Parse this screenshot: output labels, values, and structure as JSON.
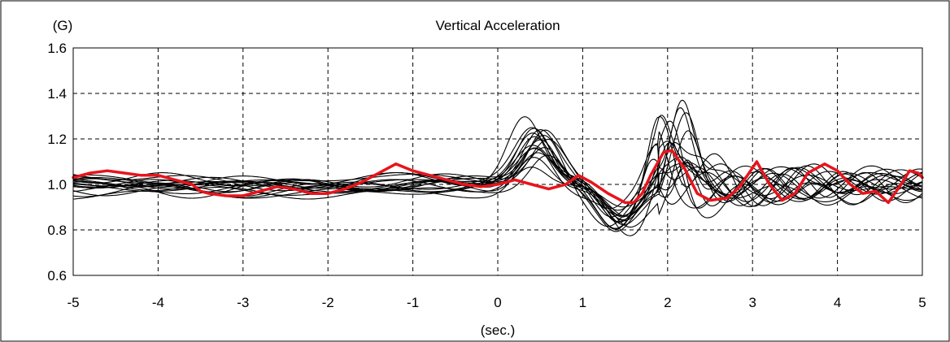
{
  "chart_data": {
    "type": "line",
    "title": "Vertical Acceleration",
    "y_unit_label": "(G)",
    "xlabel": "(sec.)",
    "xlim": [
      -5,
      5
    ],
    "ylim": [
      0.6,
      1.6
    ],
    "x_ticks": [
      -5,
      -4,
      -3,
      -2,
      -1,
      0,
      1,
      2,
      3,
      4,
      5
    ],
    "y_ticks": [
      0.6,
      0.8,
      1.0,
      1.2,
      1.4,
      1.6
    ],
    "y_tick_labels": [
      "0.6",
      "0.8",
      "1.0",
      "1.2",
      "1.4",
      "1.6"
    ],
    "grid": "dashed",
    "legend": "none",
    "colors": {
      "highlight": "#e8141c",
      "background_traces": "#000000"
    },
    "series": [
      {
        "color": "#e8141c",
        "emphasis": "bold",
        "points": [
          [
            -5,
            1.03
          ],
          [
            -4.8,
            1.05
          ],
          [
            -4.6,
            1.06
          ],
          [
            -4.4,
            1.05
          ],
          [
            -4.2,
            1.04
          ],
          [
            -4.0,
            1.04
          ],
          [
            -3.8,
            1.02
          ],
          [
            -3.6,
            1.0
          ],
          [
            -3.5,
            0.97
          ],
          [
            -3.4,
            0.96
          ],
          [
            -3.2,
            0.95
          ],
          [
            -3.0,
            0.95
          ],
          [
            -2.8,
            0.97
          ],
          [
            -2.6,
            0.99
          ],
          [
            -2.4,
            0.98
          ],
          [
            -2.2,
            0.96
          ],
          [
            -2.0,
            0.96
          ],
          [
            -1.8,
            0.98
          ],
          [
            -1.6,
            1.01
          ],
          [
            -1.4,
            1.05
          ],
          [
            -1.2,
            1.09
          ],
          [
            -1.0,
            1.06
          ],
          [
            -0.8,
            1.04
          ],
          [
            -0.6,
            1.02
          ],
          [
            -0.4,
            1.0
          ],
          [
            -0.2,
            0.99
          ],
          [
            0.0,
            1.0
          ],
          [
            0.2,
            1.02
          ],
          [
            0.4,
            1.0
          ],
          [
            0.6,
            0.98
          ],
          [
            0.8,
            1.0
          ],
          [
            0.95,
            1.04
          ],
          [
            1.1,
            1.01
          ],
          [
            1.3,
            0.96
          ],
          [
            1.5,
            0.92
          ],
          [
            1.6,
            0.92
          ],
          [
            1.7,
            0.96
          ],
          [
            1.8,
            1.04
          ],
          [
            1.95,
            1.14
          ],
          [
            2.05,
            1.15
          ],
          [
            2.2,
            1.07
          ],
          [
            2.35,
            0.96
          ],
          [
            2.5,
            0.93
          ],
          [
            2.7,
            0.94
          ],
          [
            2.85,
            0.99
          ],
          [
            3.05,
            1.1
          ],
          [
            3.2,
            1.0
          ],
          [
            3.35,
            0.93
          ],
          [
            3.5,
            0.96
          ],
          [
            3.65,
            1.05
          ],
          [
            3.85,
            1.09
          ],
          [
            4.0,
            1.06
          ],
          [
            4.15,
            1.0
          ],
          [
            4.3,
            0.96
          ],
          [
            4.45,
            0.97
          ],
          [
            4.6,
            0.92
          ],
          [
            4.75,
            1.0
          ],
          [
            4.85,
            1.06
          ],
          [
            4.95,
            1.05
          ],
          [
            5.0,
            1.03
          ]
        ]
      }
    ]
  }
}
